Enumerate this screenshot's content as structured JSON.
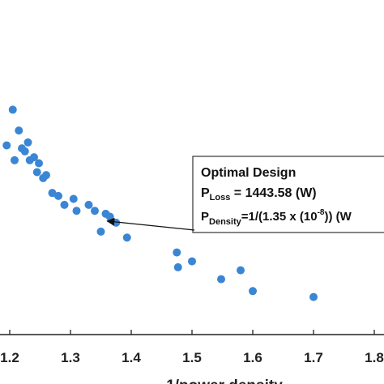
{
  "chart_data": {
    "type": "scatter",
    "xlabel": "1/power density",
    "xlim": [
      1.15,
      1.82
    ],
    "ylim": [
      0,
      1
    ],
    "x_ticks": [
      "1.2",
      "1.3",
      "1.4",
      "1.5",
      "1.6",
      "1.7",
      "1.8"
    ],
    "marker_color": "#3a86d4",
    "axis_color": "#222222",
    "series": [
      {
        "points": [
          {
            "x": 1.195,
            "y": 0.62
          },
          {
            "x": 1.205,
            "y": 0.74
          },
          {
            "x": 1.208,
            "y": 0.57
          },
          {
            "x": 1.215,
            "y": 0.67
          },
          {
            "x": 1.22,
            "y": 0.61
          },
          {
            "x": 1.225,
            "y": 0.6
          },
          {
            "x": 1.23,
            "y": 0.63
          },
          {
            "x": 1.233,
            "y": 0.57
          },
          {
            "x": 1.24,
            "y": 0.58
          },
          {
            "x": 1.245,
            "y": 0.53
          },
          {
            "x": 1.248,
            "y": 0.56
          },
          {
            "x": 1.255,
            "y": 0.51
          },
          {
            "x": 1.26,
            "y": 0.52
          },
          {
            "x": 1.27,
            "y": 0.46
          },
          {
            "x": 1.28,
            "y": 0.45
          },
          {
            "x": 1.29,
            "y": 0.42
          },
          {
            "x": 1.305,
            "y": 0.44
          },
          {
            "x": 1.31,
            "y": 0.4
          },
          {
            "x": 1.33,
            "y": 0.42
          },
          {
            "x": 1.34,
            "y": 0.4
          },
          {
            "x": 1.35,
            "y": 0.33
          },
          {
            "x": 1.358,
            "y": 0.39
          },
          {
            "x": 1.365,
            "y": 0.38
          },
          {
            "x": 1.375,
            "y": 0.36
          },
          {
            "x": 1.393,
            "y": 0.31
          },
          {
            "x": 1.475,
            "y": 0.26
          },
          {
            "x": 1.477,
            "y": 0.21
          },
          {
            "x": 1.5,
            "y": 0.23
          },
          {
            "x": 1.548,
            "y": 0.17
          },
          {
            "x": 1.58,
            "y": 0.2
          },
          {
            "x": 1.6,
            "y": 0.13
          },
          {
            "x": 1.7,
            "y": 0.11
          }
        ]
      }
    ],
    "annotation": {
      "title": "Optimal Design",
      "loss_sym": "P",
      "loss_sub": "Loss",
      "loss_value": " = 1443.58 (W)",
      "density_sym": "P",
      "density_sub": "Density",
      "density_value_pre": "=1/(1.35 x (10",
      "density_exp": "-8",
      "density_value_post": ")) (W",
      "target": {
        "x": 1.355,
        "y": 0.36
      }
    }
  }
}
